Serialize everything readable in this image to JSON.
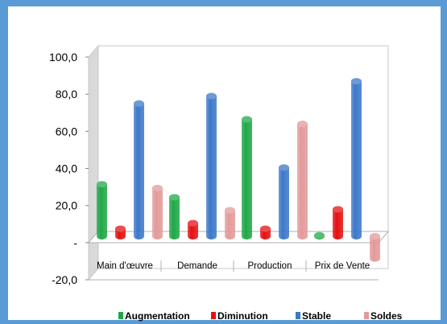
{
  "chart_data": {
    "type": "bar",
    "style": "3d-cylinder",
    "categories": [
      "Main d'œuvre",
      "Demande",
      "Production",
      "Prix de Vente"
    ],
    "series": [
      {
        "name": "Augmentation",
        "color": "#1fa847",
        "values": [
          28.0,
          21.0,
          63.0,
          0.5
        ]
      },
      {
        "name": "Diminution",
        "color": "#e51010",
        "values": [
          4.0,
          7.0,
          4.0,
          14.5
        ]
      },
      {
        "name": "Stable",
        "color": "#3d78c9",
        "values": [
          71.5,
          75.5,
          37.0,
          83.5
        ]
      },
      {
        "name": "Soldes",
        "color": "#e39a9a",
        "values": [
          26.0,
          14.0,
          60.5,
          -12.0
        ]
      }
    ],
    "title": "",
    "xlabel": "",
    "ylabel": "",
    "ylim": [
      -20,
      100
    ],
    "y_ticks": [
      "100,0",
      "80,0",
      "60,0",
      "40,0",
      "20,0",
      "-",
      "-20,0"
    ],
    "grid": false,
    "legend": "bottom",
    "background_color": "#5b9bd5",
    "plot_area_color": "#ffffff"
  }
}
